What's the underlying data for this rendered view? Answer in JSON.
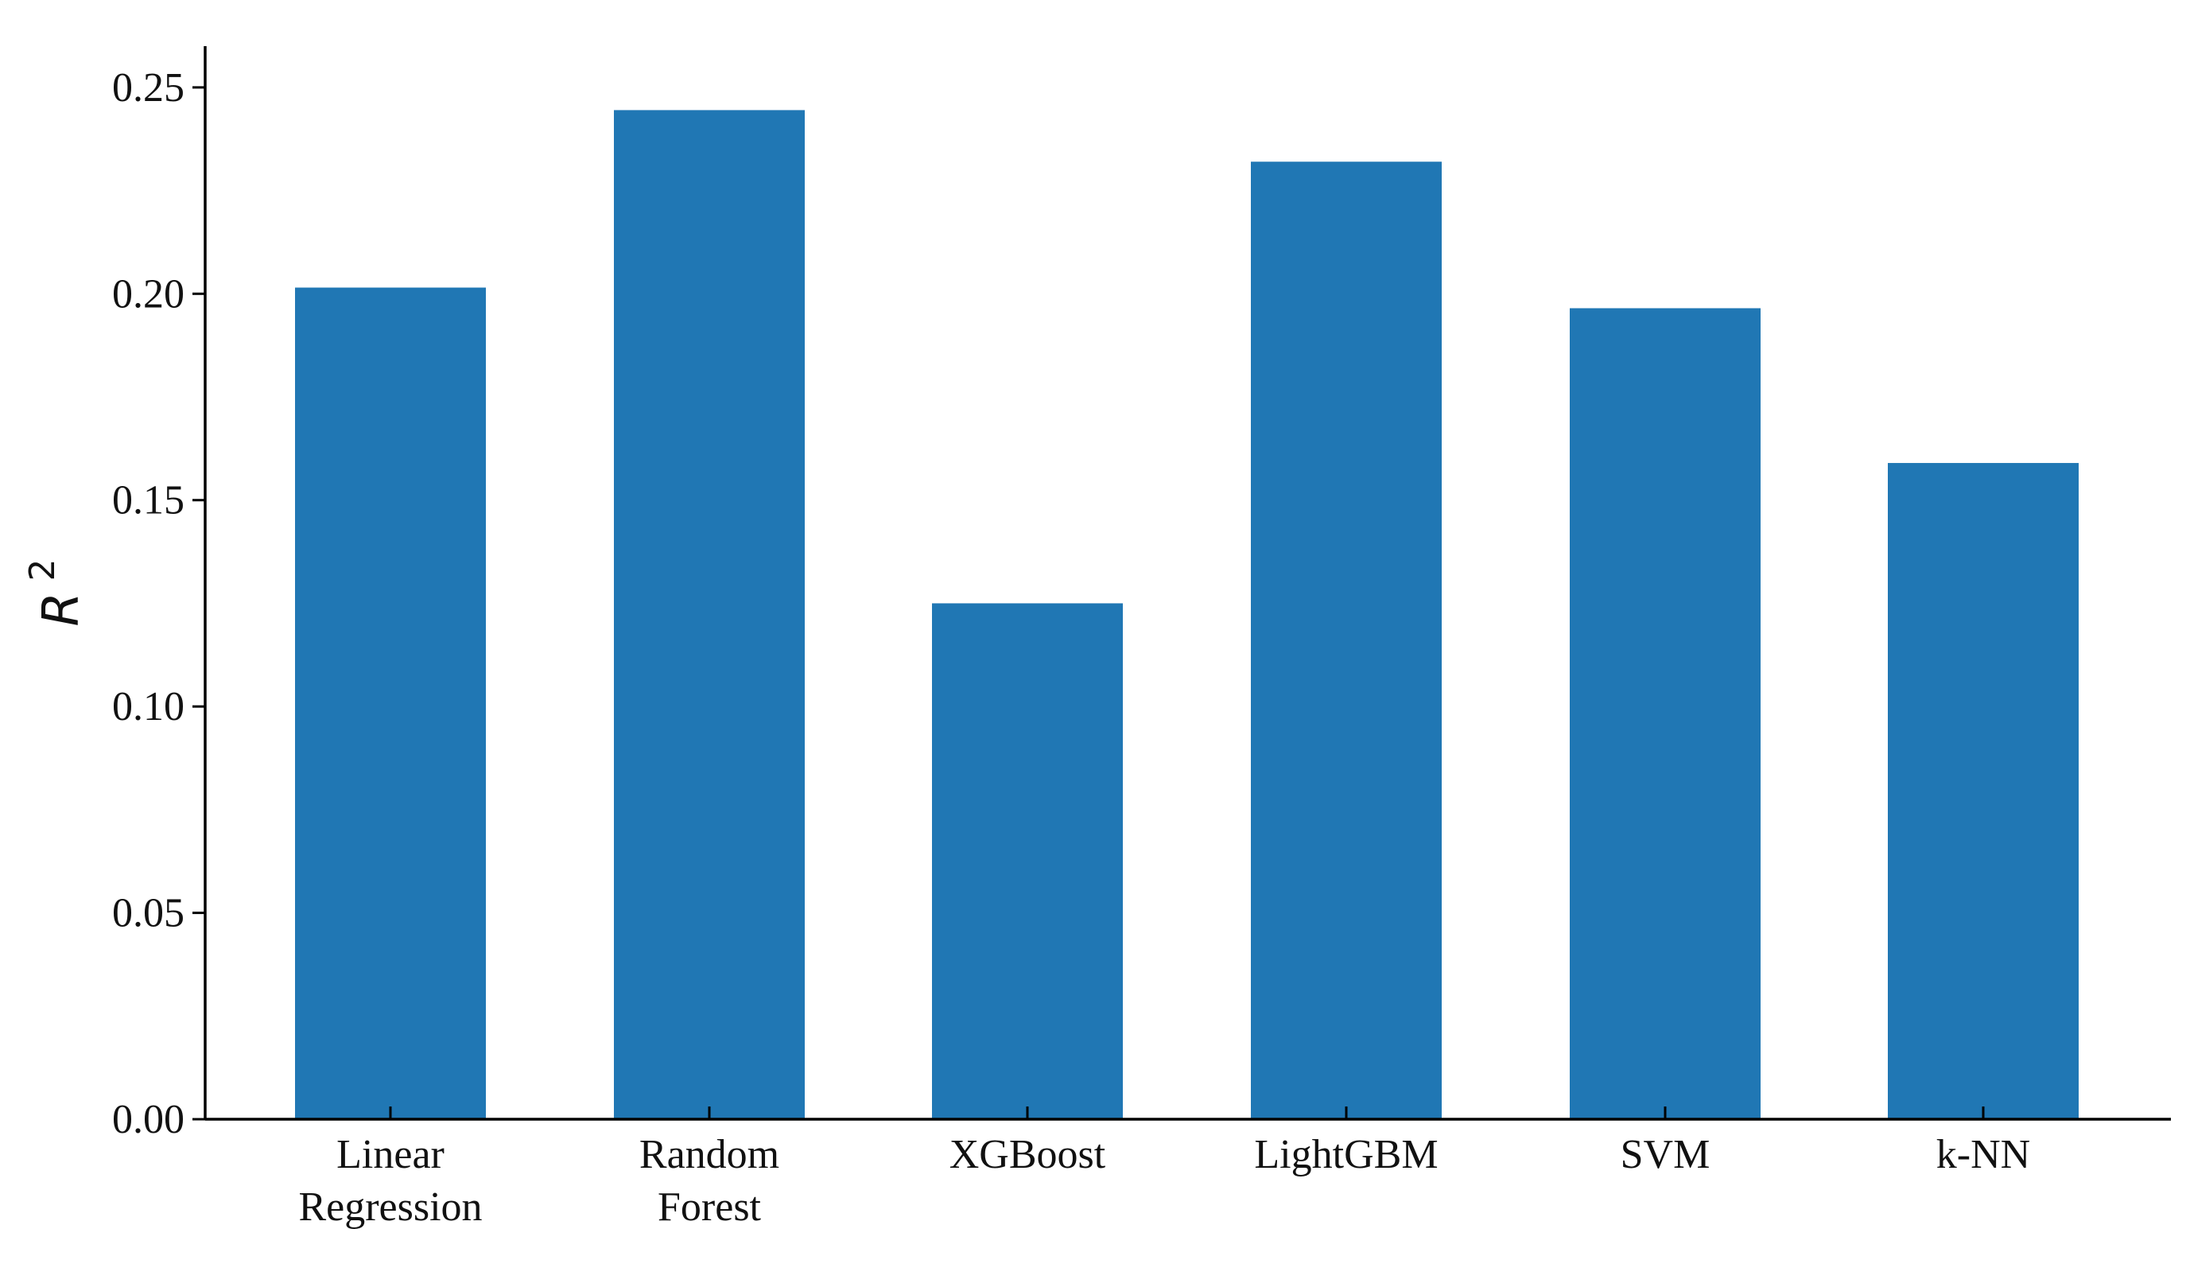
{
  "chart_data": {
    "type": "bar",
    "categories": [
      "Linear Regression",
      "Random Forest",
      "XGBoost",
      "LightGBM",
      "SVM",
      "k-NN"
    ],
    "category_lines": [
      [
        "Linear",
        "Regression"
      ],
      [
        "Random",
        "Forest"
      ],
      [
        "XGBoost"
      ],
      [
        "LightGBM"
      ],
      [
        "SVM"
      ],
      [
        "k-NN"
      ]
    ],
    "values": [
      0.2015,
      0.2445,
      0.125,
      0.232,
      0.1965,
      0.159
    ],
    "title": "",
    "xlabel": "",
    "ylabel": "R",
    "ylabel_superscript": "2",
    "ylim": [
      0,
      0.26
    ],
    "yticks": [
      0.0,
      0.05,
      0.1,
      0.15,
      0.2,
      0.25
    ],
    "ytick_labels": [
      "0.00",
      "0.05",
      "0.10",
      "0.15",
      "0.20",
      "0.25"
    ],
    "grid": false,
    "bar_color": "#2077b4"
  }
}
